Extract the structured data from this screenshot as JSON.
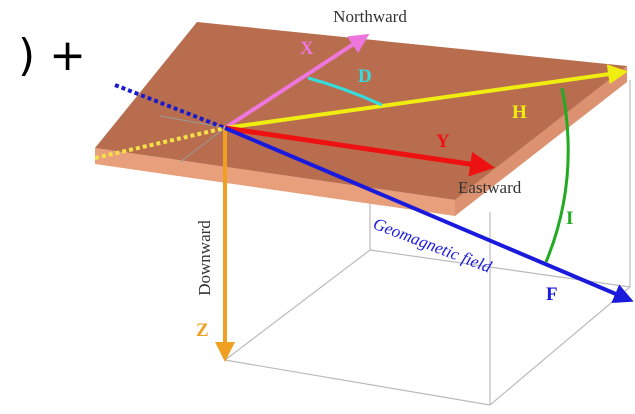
{
  "corner_text": ") +",
  "labels": {
    "northward": "Northward",
    "x": "X",
    "d": "D",
    "h": "H",
    "y": "Y",
    "eastward": "Eastward",
    "i": "I",
    "downward": "Downward",
    "z": "Z",
    "field": "Geomagnetic field",
    "f": "F"
  }
}
